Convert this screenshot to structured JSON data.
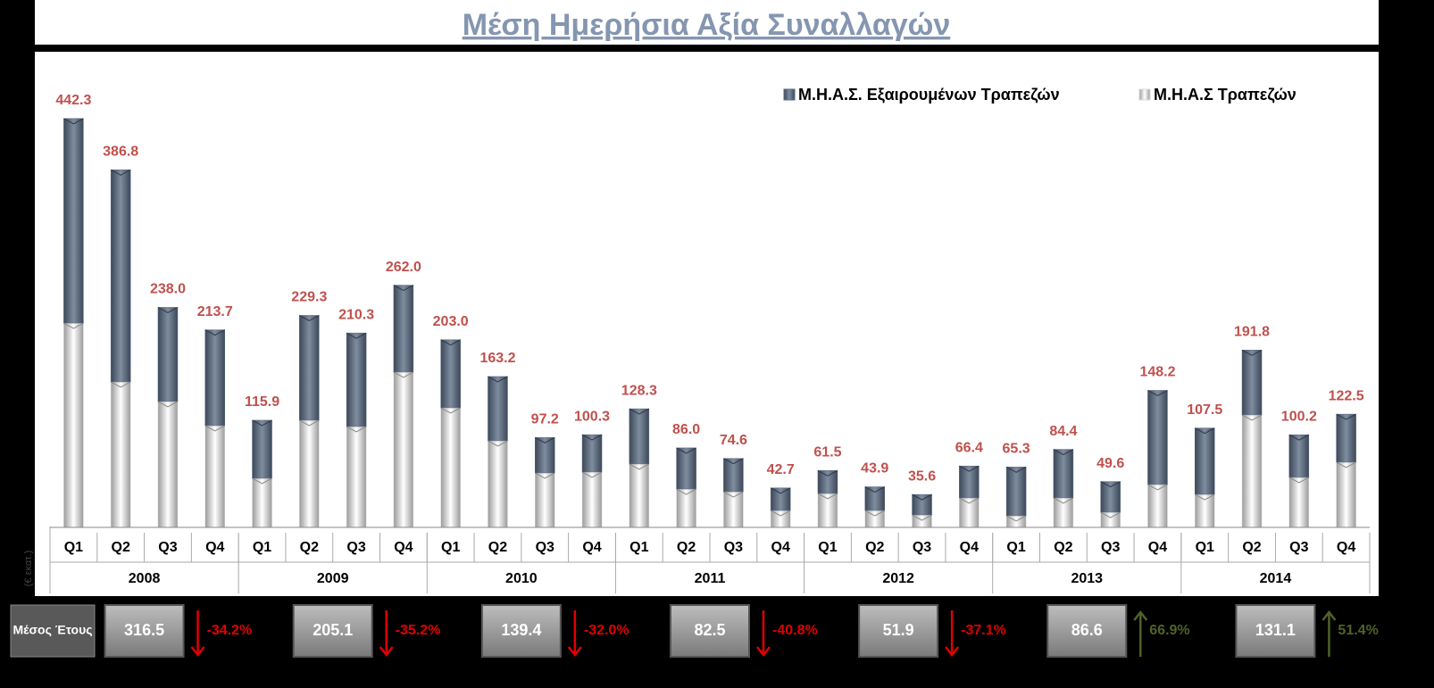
{
  "chart_data": {
    "type": "stacked_bar",
    "title": "Μέση Ημερήσια Αξία Συναλλαγών",
    "y_label": "(€ εκατ.)",
    "categories": [
      "Q1",
      "Q2",
      "Q3",
      "Q4",
      "Q1",
      "Q2",
      "Q3",
      "Q4",
      "Q1",
      "Q2",
      "Q3",
      "Q4",
      "Q1",
      "Q2",
      "Q3",
      "Q4",
      "Q1",
      "Q2",
      "Q3",
      "Q4",
      "Q1",
      "Q2",
      "Q3",
      "Q4",
      "Q1",
      "Q2",
      "Q3",
      "Q4"
    ],
    "years": [
      "2008",
      "2009",
      "2010",
      "2011",
      "2012",
      "2013",
      "2014"
    ],
    "series": [
      {
        "name": "Μ.Η.Α.Σ Τραπεζών",
        "color": "#d9d9d9",
        "values": [
          221.0,
          157.4,
          136.2,
          110.1,
          53.1,
          115.9,
          109.1,
          168.0,
          129.4,
          93.7,
          58.9,
          59.9,
          68.6,
          41.5,
          38.6,
          18.3,
          36.7,
          18.3,
          13.5,
          31.9,
          12.6,
          31.9,
          16.4,
          46.4,
          35.7,
          121.7,
          54.1,
          70.5
        ]
      },
      {
        "name": "Μ.Η.Α.Σ. Εξαιρουμένων Τραπεζών",
        "color": "#5a6a80",
        "values": [
          221.3,
          229.4,
          101.8,
          103.6,
          62.8,
          113.4,
          101.2,
          94.0,
          73.6,
          69.5,
          38.3,
          40.4,
          59.7,
          44.5,
          36.0,
          24.4,
          24.8,
          25.6,
          22.1,
          34.5,
          52.7,
          52.5,
          33.2,
          101.8,
          71.8,
          70.1,
          46.1,
          52.0
        ]
      }
    ],
    "totals": [
      442.3,
      386.8,
      238.0,
      213.7,
      115.9,
      229.3,
      210.3,
      262.0,
      203.0,
      163.2,
      97.2,
      100.3,
      128.3,
      86.0,
      74.6,
      42.7,
      61.5,
      43.9,
      35.6,
      66.4,
      65.3,
      84.4,
      49.6,
      148.2,
      107.5,
      191.8,
      100.2,
      122.5
    ],
    "total_labels": [
      "442.3",
      "386.8",
      "238.0",
      "213.7",
      "115.9",
      "229.3",
      "210.3",
      "262.0",
      "203.0",
      "163.2",
      "97.2",
      "100.3",
      "128.3",
      "86.0",
      "74.6",
      "42.7",
      "61.5",
      "43.9",
      "35.6",
      "66.4",
      "65.3",
      "84.4",
      "49.6",
      "148.2",
      "107.5",
      "191.8",
      "100.2",
      "122.5"
    ],
    "ylim": [
      0,
      500
    ],
    "annual": {
      "label": "Μέσος Έτους",
      "values": [
        316.5,
        205.1,
        139.4,
        82.5,
        51.9,
        86.6,
        131.1
      ],
      "changes": [
        -34.2,
        -35.2,
        -32.0,
        -40.8,
        -37.1,
        66.9,
        51.4
      ],
      "change_labels": [
        "-34.2%",
        "-35.2%",
        "-32.0%",
        "-40.8%",
        "-37.1%",
        "66.9%",
        "51.4%"
      ],
      "down_color": "#e00000",
      "up_color": "#4f6228"
    }
  }
}
